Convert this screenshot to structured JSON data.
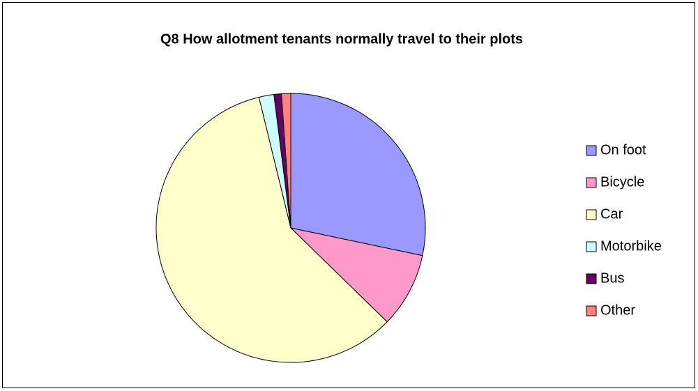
{
  "chart_data": {
    "type": "pie",
    "title": "Q8 How allotment tenants normally travel to their plots",
    "categories": [
      "On foot",
      "Bicycle",
      "Car",
      "Motorbike",
      "Bus",
      "Other"
    ],
    "values": [
      28.3,
      9,
      58.9,
      1.8,
      0.9,
      1.1
    ],
    "colors": [
      "#9999ff",
      "#ff99cc",
      "#ffffcc",
      "#ccffff",
      "#660066",
      "#ff8080"
    ],
    "legend": "right"
  }
}
